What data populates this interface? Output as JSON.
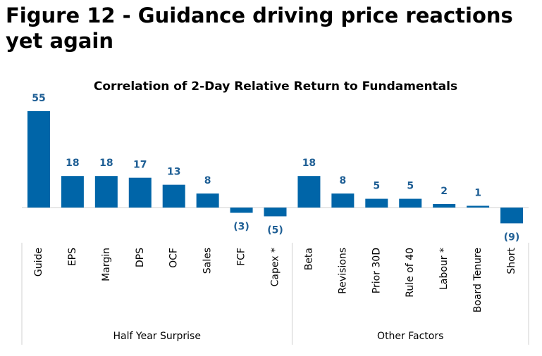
{
  "page_title": "Figure 12 - Guidance driving price reactions yet again",
  "chart_data": {
    "type": "bar",
    "title": "Correlation of 2-Day Relative Return to Fundamentals",
    "color": "#0065a8",
    "groups": [
      {
        "name": "Half Year Surprise",
        "categories": [
          "Guide",
          "EPS",
          "Margin",
          "DPS",
          "OCF",
          "Sales",
          "FCF",
          "Capex *"
        ],
        "values": [
          55,
          18,
          18,
          17,
          13,
          8,
          -3,
          -5
        ],
        "value_labels": [
          "55",
          "18",
          "18",
          "17",
          "13",
          "8",
          "(3)",
          "(5)"
        ]
      },
      {
        "name": "Other Factors",
        "categories": [
          "Beta",
          "Revisions",
          "Prior 30D",
          "Rule of 40",
          "Labour *",
          "Board Tenure",
          "Short"
        ],
        "values": [
          18,
          8,
          5,
          5,
          2,
          1,
          -9
        ],
        "value_labels": [
          "18",
          "8",
          "5",
          "5",
          "2",
          "1",
          "(9)"
        ]
      }
    ]
  }
}
